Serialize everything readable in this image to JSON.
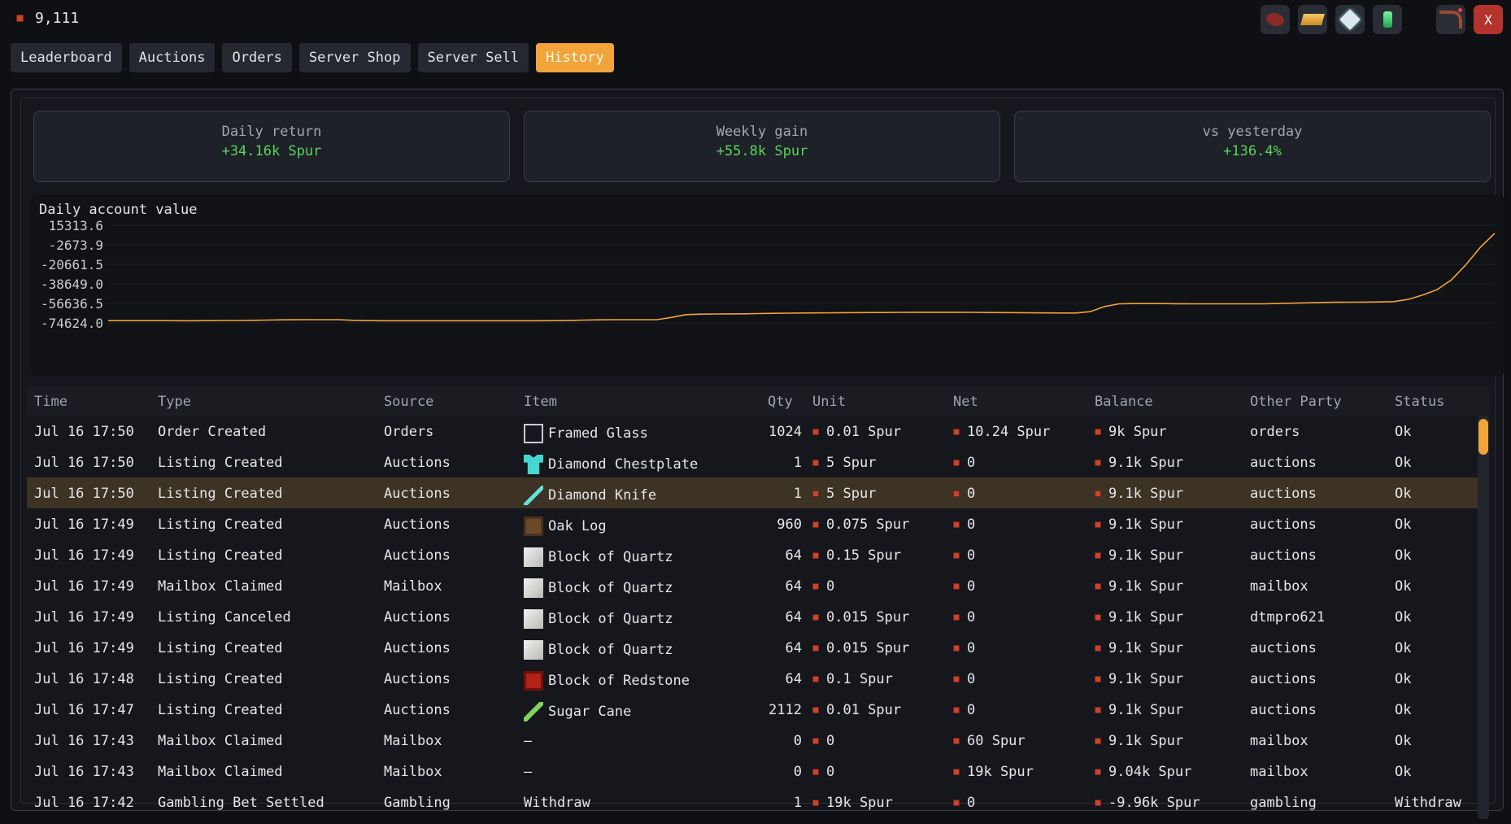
{
  "balance": "9,111",
  "colors": {
    "accent": "#f0a43a",
    "positive": "#55d65a",
    "coin": "#c8452f",
    "line": "#f0a43a"
  },
  "top_icons": [
    "redstone-dust-icon",
    "gold-ingot-icon",
    "nether-star-icon",
    "emerald-icon",
    "bow-icon",
    "close-icon"
  ],
  "close_label": "X",
  "tabs": [
    "Leaderboard",
    "Auctions",
    "Orders",
    "Server Shop",
    "Server Sell",
    "History"
  ],
  "active_tab": "History",
  "cards": [
    {
      "label": "Daily return",
      "value": "+34.16k Spur"
    },
    {
      "label": "Weekly gain",
      "value": "+55.8k Spur"
    },
    {
      "label": "vs yesterday",
      "value": "+136.4%"
    }
  ],
  "chart_data": {
    "type": "line",
    "title": "Daily account value",
    "xlabel": "",
    "ylabel": "",
    "yticks": [
      "15313.6",
      "-2673.9",
      "-20661.5",
      "-38649.0",
      "-56636.5",
      "-74624.0"
    ],
    "ylim": [
      -74624.0,
      15313.6
    ],
    "grid": true,
    "series": [
      {
        "values": [
          -72500,
          -72500,
          -72500,
          -72500,
          -72500,
          -72600,
          -72600,
          -72500,
          -72400,
          -72400,
          -72200,
          -72000,
          -71800,
          -71700,
          -71600,
          -71600,
          -71600,
          -72200,
          -72500,
          -72600,
          -72600,
          -72600,
          -72600,
          -72600,
          -72600,
          -72600,
          -72600,
          -72600,
          -72600,
          -72600,
          -72600,
          -72500,
          -72300,
          -72000,
          -71800,
          -71600,
          -71600,
          -71600,
          -71600,
          -69500,
          -67000,
          -66500,
          -66400,
          -66300,
          -66200,
          -66000,
          -65800,
          -65600,
          -65500,
          -65400,
          -65300,
          -65200,
          -65100,
          -65000,
          -65000,
          -64900,
          -64800,
          -64800,
          -64800,
          -64800,
          -64900,
          -65000,
          -65100,
          -65200,
          -65300,
          -65400,
          -65500,
          -65500,
          -64200,
          -59500,
          -57000,
          -56800,
          -56800,
          -56800,
          -56900,
          -57000,
          -57000,
          -57000,
          -57000,
          -57000,
          -57000,
          -56700,
          -56400,
          -56100,
          -55800,
          -55600,
          -55500,
          -55400,
          -55300,
          -55000,
          -53000,
          -49000,
          -44000,
          -35000,
          -21000,
          -5000,
          8000
        ]
      }
    ]
  },
  "table": {
    "columns": [
      "Time",
      "Type",
      "Source",
      "Item",
      "Qty",
      "Unit",
      "Net",
      "Balance",
      "Other Party",
      "Status"
    ],
    "rows": [
      {
        "time": "Jul 16 17:50",
        "type": "Order Created",
        "source": "Orders",
        "item": "Framed Glass",
        "icon": "glass",
        "qty": "1024",
        "unit": "0.01 Spur",
        "net": "10.24 Spur",
        "balance": "9k Spur",
        "party": "orders",
        "status": "Ok"
      },
      {
        "time": "Jul 16 17:50",
        "type": "Listing Created",
        "source": "Auctions",
        "item": "Diamond Chestplate",
        "icon": "chest",
        "qty": "1",
        "unit": "5 Spur",
        "net": "0",
        "balance": "9.1k Spur",
        "party": "auctions",
        "status": "Ok"
      },
      {
        "time": "Jul 16 17:50",
        "type": "Listing Created",
        "source": "Auctions",
        "item": "Diamond Knife",
        "icon": "knife",
        "qty": "1",
        "unit": "5 Spur",
        "net": "0",
        "balance": "9.1k Spur",
        "party": "auctions",
        "status": "Ok",
        "highlight": true
      },
      {
        "time": "Jul 16 17:49",
        "type": "Listing Created",
        "source": "Auctions",
        "item": "Oak Log",
        "icon": "log",
        "qty": "960",
        "unit": "0.075 Spur",
        "net": "0",
        "balance": "9.1k Spur",
        "party": "auctions",
        "status": "Ok"
      },
      {
        "time": "Jul 16 17:49",
        "type": "Listing Created",
        "source": "Auctions",
        "item": "Block of Quartz",
        "icon": "quartz",
        "qty": "64",
        "unit": "0.15 Spur",
        "net": "0",
        "balance": "9.1k Spur",
        "party": "auctions",
        "status": "Ok"
      },
      {
        "time": "Jul 16 17:49",
        "type": "Mailbox Claimed",
        "source": "Mailbox",
        "item": "Block of Quartz",
        "icon": "quartz",
        "qty": "64",
        "unit": "0",
        "net": "0",
        "balance": "9.1k Spur",
        "party": "mailbox",
        "status": "Ok"
      },
      {
        "time": "Jul 16 17:49",
        "type": "Listing Canceled",
        "source": "Auctions",
        "item": "Block of Quartz",
        "icon": "quartz",
        "qty": "64",
        "unit": "0.015 Spur",
        "net": "0",
        "balance": "9.1k Spur",
        "party": "dtmpro621",
        "status": "Ok"
      },
      {
        "time": "Jul 16 17:49",
        "type": "Listing Created",
        "source": "Auctions",
        "item": "Block of Quartz",
        "icon": "quartz",
        "qty": "64",
        "unit": "0.015 Spur",
        "net": "0",
        "balance": "9.1k Spur",
        "party": "auctions",
        "status": "Ok"
      },
      {
        "time": "Jul 16 17:48",
        "type": "Listing Created",
        "source": "Auctions",
        "item": "Block of Redstone",
        "icon": "redstone",
        "qty": "64",
        "unit": "0.1 Spur",
        "net": "0",
        "balance": "9.1k Spur",
        "party": "auctions",
        "status": "Ok"
      },
      {
        "time": "Jul 16 17:47",
        "type": "Listing Created",
        "source": "Auctions",
        "item": "Sugar Cane",
        "icon": "cane",
        "qty": "2112",
        "unit": "0.01 Spur",
        "net": "0",
        "balance": "9.1k Spur",
        "party": "auctions",
        "status": "Ok"
      },
      {
        "time": "Jul 16 17:43",
        "type": "Mailbox Claimed",
        "source": "Mailbox",
        "item": "—",
        "icon": "",
        "qty": "0",
        "unit": "0",
        "net": "60 Spur",
        "balance": "9.1k Spur",
        "party": "mailbox",
        "status": "Ok"
      },
      {
        "time": "Jul 16 17:43",
        "type": "Mailbox Claimed",
        "source": "Mailbox",
        "item": "—",
        "icon": "",
        "qty": "0",
        "unit": "0",
        "net": "19k Spur",
        "balance": "9.04k Spur",
        "party": "mailbox",
        "status": "Ok"
      },
      {
        "time": "Jul 16 17:42",
        "type": "Gambling Bet Settled",
        "source": "Gambling",
        "item": "Withdraw",
        "icon": "",
        "qty": "1",
        "unit": "19k Spur",
        "net": "0",
        "balance": "-9.96k Spur",
        "party": "gambling",
        "status": "Withdraw"
      }
    ]
  }
}
